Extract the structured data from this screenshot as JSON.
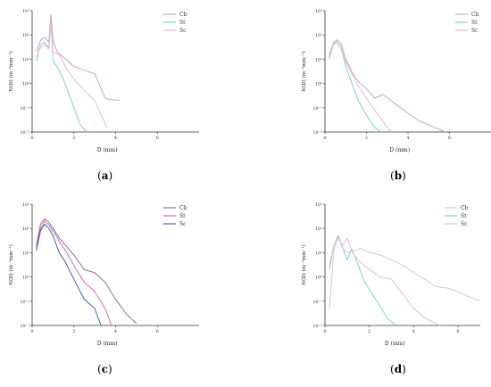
{
  "colors": {
    "Cb": "#c3a4c9",
    "St": "#7fd3cc",
    "Sc": "#f0b7c9"
  },
  "chart_data": [
    {
      "type": "line",
      "panel_label": "a",
      "xlabel": "D (mm)",
      "ylabel": "N(D) (m⁻³mm⁻¹)",
      "xlim": [
        0,
        8
      ],
      "ylim_log10": [
        -2,
        3
      ],
      "x_ticks": [
        "0",
        "2",
        "4",
        "6"
      ],
      "y_ticks": [
        "10⁻²",
        "10⁻¹",
        "10⁰",
        "10¹",
        "10²",
        "10³"
      ],
      "legend_position": "top-right",
      "series": [
        {
          "name": "Cb",
          "color": "#c3a4c9",
          "x": [
            0.2,
            0.4,
            0.6,
            0.8,
            0.9,
            1.0,
            1.2,
            1.5,
            2.0,
            2.5,
            3.0,
            3.5,
            3.7,
            4.2
          ],
          "y": [
            20,
            60,
            80,
            50,
            700,
            60,
            20,
            12,
            5,
            3.5,
            2.5,
            0.25,
            0.22,
            0.2
          ]
        },
        {
          "name": "St",
          "color": "#7fd3cc",
          "x": [
            0.2,
            0.4,
            0.6,
            0.8,
            0.9,
            1.0,
            1.2,
            1.5,
            1.8,
            2.0,
            2.3,
            2.6
          ],
          "y": [
            8,
            40,
            50,
            30,
            400,
            8,
            5,
            1.5,
            0.3,
            0.1,
            0.02,
            0.01
          ]
        },
        {
          "name": "Sc",
          "color": "#f0b7c9",
          "x": [
            0.2,
            0.4,
            0.6,
            0.8,
            0.9,
            1.0,
            1.3,
            1.6,
            2.0,
            2.5,
            3.0,
            3.3,
            3.6
          ],
          "y": [
            12,
            30,
            40,
            25,
            300,
            20,
            15,
            5,
            1.5,
            0.5,
            0.2,
            0.05,
            0.015
          ]
        }
      ]
    },
    {
      "type": "line",
      "panel_label": "b",
      "xlabel": "D (mm)",
      "ylabel": "N(D) (m⁻³mm⁻¹)",
      "xlim": [
        0,
        8
      ],
      "ylim_log10": [
        -2,
        3
      ],
      "x_ticks": [
        "0",
        "2",
        "4",
        "6"
      ],
      "y_ticks": [
        "10⁻²",
        "10⁻¹",
        "10⁰",
        "10¹",
        "10²",
        "10³"
      ],
      "legend_position": "top-right",
      "series": [
        {
          "name": "Cb",
          "color": "#c3a4c9",
          "x": [
            0.2,
            0.4,
            0.6,
            0.8,
            1.0,
            1.3,
            1.6,
            2.0,
            2.4,
            2.8,
            3.5,
            4.5,
            5.3,
            5.8
          ],
          "y": [
            15,
            45,
            60,
            40,
            10,
            3,
            1.2,
            0.6,
            0.25,
            0.35,
            0.12,
            0.03,
            0.015,
            0.01
          ]
        },
        {
          "name": "St",
          "color": "#7fd3cc",
          "x": [
            0.2,
            0.4,
            0.6,
            0.8,
            1.0,
            1.3,
            1.6,
            2.0,
            2.4,
            2.7
          ],
          "y": [
            10,
            40,
            50,
            25,
            5,
            1,
            0.2,
            0.05,
            0.015,
            0.01
          ]
        },
        {
          "name": "Sc",
          "color": "#f0b7c9",
          "x": [
            0.2,
            0.4,
            0.6,
            0.8,
            1.0,
            1.3,
            1.6,
            2.0,
            2.5,
            3.0,
            3.2
          ],
          "y": [
            12,
            50,
            65,
            35,
            8,
            2.5,
            0.8,
            0.25,
            0.06,
            0.015,
            0.01
          ]
        }
      ]
    },
    {
      "type": "line",
      "panel_label": "c",
      "xlabel": "D (mm)",
      "ylabel": "N(D) (m⁻³mm⁻¹)",
      "xlim": [
        0,
        8
      ],
      "ylim_log10": [
        -2,
        3
      ],
      "x_ticks": [
        "0",
        "2",
        "4",
        "6"
      ],
      "y_ticks": [
        "10⁻²",
        "10⁻¹",
        "10⁰",
        "10¹",
        "10²",
        "10³"
      ],
      "legend_position": "top-right",
      "series": [
        {
          "name": "Cb",
          "color": "#8a6fa8",
          "x": [
            0.2,
            0.4,
            0.6,
            0.8,
            1.0,
            1.3,
            1.6,
            2.0,
            2.5,
            3.0,
            3.5,
            4.0,
            4.5,
            5.0
          ],
          "y": [
            20,
            150,
            250,
            180,
            100,
            40,
            20,
            8,
            2,
            1.5,
            0.6,
            0.12,
            0.03,
            0.012
          ]
        },
        {
          "name": "St",
          "color": "#d06fa8",
          "x": [
            0.2,
            0.4,
            0.6,
            0.8,
            1.0,
            1.3,
            1.6,
            2.0,
            2.5,
            3.0,
            3.5,
            3.8
          ],
          "y": [
            15,
            100,
            200,
            140,
            80,
            30,
            12,
            3,
            0.6,
            0.25,
            0.05,
            0.01
          ]
        },
        {
          "name": "Sc",
          "color": "#4a58b8",
          "x": [
            0.2,
            0.4,
            0.6,
            0.8,
            1.0,
            1.3,
            1.6,
            2.0,
            2.5,
            3.0,
            3.3
          ],
          "y": [
            12,
            80,
            150,
            100,
            50,
            10,
            4,
            0.8,
            0.12,
            0.05,
            0.01
          ]
        }
      ]
    },
    {
      "type": "line",
      "panel_label": "d",
      "xlabel": "D (mm)",
      "ylabel": "N(D) (m⁻³mm⁻¹)",
      "xlim": [
        0,
        7
      ],
      "ylim_log10": [
        -2,
        3
      ],
      "x_ticks": [
        "0",
        "2",
        "4",
        "6"
      ],
      "y_ticks": [
        "10⁻²",
        "10⁻¹",
        "10⁰",
        "10¹",
        "10²",
        "10³"
      ],
      "legend_position": "top-right",
      "series": [
        {
          "name": "Cb",
          "color": "#d9c3e0",
          "x": [
            0.2,
            0.4,
            0.6,
            0.8,
            1.0,
            1.3,
            1.6,
            2.0,
            2.5,
            3.0,
            3.5,
            4.0,
            4.5,
            5.0,
            5.5,
            6.0,
            6.5,
            7.0
          ],
          "y": [
            0.05,
            12,
            50,
            15,
            10,
            12,
            15,
            10,
            8,
            5,
            3,
            1.5,
            0.8,
            0.4,
            0.35,
            0.25,
            0.15,
            0.1
          ]
        },
        {
          "name": "St",
          "color": "#7fd3cc",
          "x": [
            0.2,
            0.4,
            0.6,
            0.8,
            1.0,
            1.2,
            1.5,
            1.8,
            2.0,
            2.5,
            2.8,
            3.2
          ],
          "y": [
            2,
            20,
            50,
            15,
            5,
            15,
            3,
            0.6,
            0.3,
            0.06,
            0.02,
            0.01
          ]
        },
        {
          "name": "Sc",
          "color": "#f0b7c9",
          "x": [
            0.2,
            0.4,
            0.6,
            0.8,
            1.0,
            1.3,
            1.6,
            2.0,
            2.5,
            3.0,
            3.5,
            4.0,
            4.5,
            5.2
          ],
          "y": [
            3,
            20,
            40,
            20,
            40,
            8,
            4,
            2,
            1,
            0.8,
            0.2,
            0.05,
            0.02,
            0.01
          ]
        }
      ]
    }
  ]
}
